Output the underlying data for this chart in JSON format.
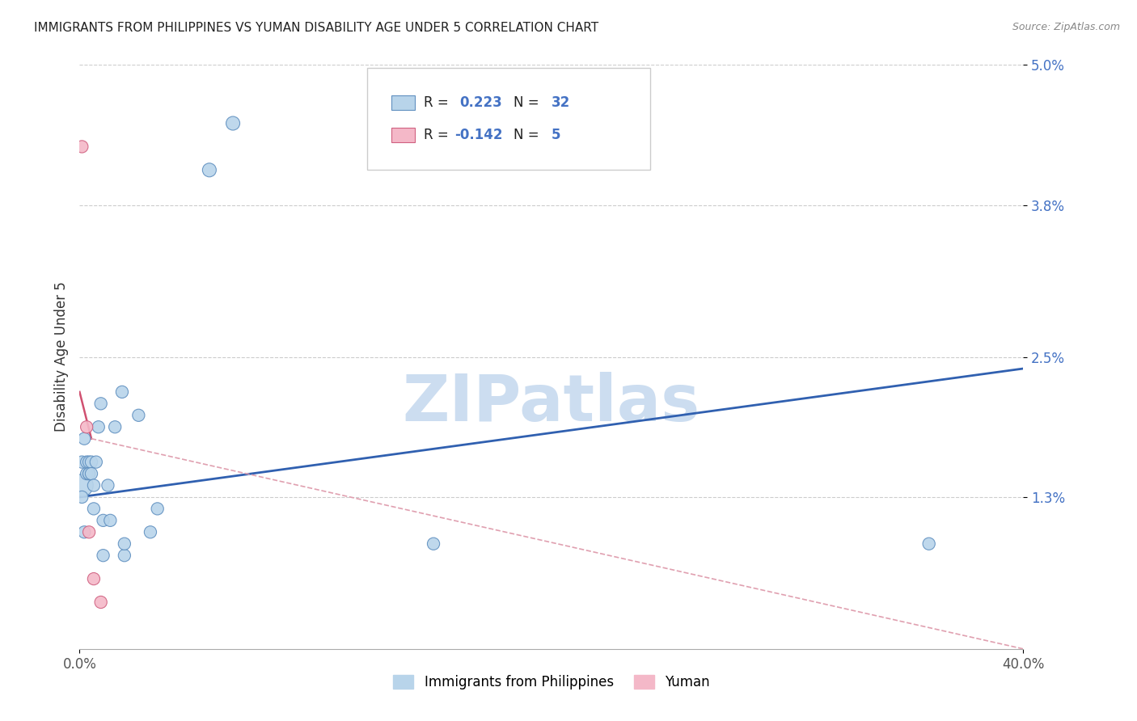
{
  "title": "IMMIGRANTS FROM PHILIPPINES VS YUMAN DISABILITY AGE UNDER 5 CORRELATION CHART",
  "source": "Source: ZipAtlas.com",
  "ylabel": "Disability Age Under 5",
  "xlim": [
    0.0,
    0.4
  ],
  "ylim": [
    0.0,
    0.05
  ],
  "yticks": [
    0.013,
    0.025,
    0.038,
    0.05
  ],
  "ytick_labels": [
    "1.3%",
    "2.5%",
    "3.8%",
    "5.0%"
  ],
  "xticks": [
    0.0,
    0.4
  ],
  "xtick_labels": [
    "0.0%",
    "40.0%"
  ],
  "legend_entries": [
    {
      "label": "Immigrants from Philippines",
      "R": "0.223",
      "N": "32",
      "color": "#b8d4ea"
    },
    {
      "label": "Yuman",
      "R": "-0.142",
      "N": "5",
      "color": "#f4b8c8"
    }
  ],
  "blue_points": [
    [
      0.001,
      0.014
    ],
    [
      0.001,
      0.013
    ],
    [
      0.001,
      0.016
    ],
    [
      0.002,
      0.018
    ],
    [
      0.002,
      0.01
    ],
    [
      0.003,
      0.015
    ],
    [
      0.003,
      0.016
    ],
    [
      0.004,
      0.015
    ],
    [
      0.004,
      0.016
    ],
    [
      0.004,
      0.015
    ],
    [
      0.005,
      0.016
    ],
    [
      0.005,
      0.015
    ],
    [
      0.006,
      0.014
    ],
    [
      0.006,
      0.012
    ],
    [
      0.007,
      0.016
    ],
    [
      0.008,
      0.019
    ],
    [
      0.009,
      0.021
    ],
    [
      0.01,
      0.011
    ],
    [
      0.01,
      0.008
    ],
    [
      0.012,
      0.014
    ],
    [
      0.013,
      0.011
    ],
    [
      0.015,
      0.019
    ],
    [
      0.018,
      0.022
    ],
    [
      0.019,
      0.008
    ],
    [
      0.019,
      0.009
    ],
    [
      0.025,
      0.02
    ],
    [
      0.03,
      0.01
    ],
    [
      0.033,
      0.012
    ],
    [
      0.055,
      0.041
    ],
    [
      0.065,
      0.045
    ],
    [
      0.15,
      0.009
    ],
    [
      0.36,
      0.009
    ]
  ],
  "blue_sizes": [
    400,
    120,
    120,
    120,
    120,
    120,
    120,
    120,
    120,
    120,
    120,
    120,
    120,
    120,
    120,
    120,
    120,
    120,
    120,
    120,
    120,
    120,
    120,
    120,
    120,
    120,
    120,
    120,
    150,
    150,
    120,
    120
  ],
  "pink_points": [
    [
      0.001,
      0.043
    ],
    [
      0.003,
      0.019
    ],
    [
      0.004,
      0.01
    ],
    [
      0.006,
      0.006
    ],
    [
      0.009,
      0.004
    ]
  ],
  "pink_sizes": [
    120,
    120,
    120,
    120,
    120
  ],
  "blue_fill_color": "#b8d4ea",
  "blue_edge_color": "#6090c0",
  "pink_fill_color": "#f4b8c8",
  "pink_edge_color": "#d06080",
  "blue_line_color": "#3060b0",
  "pink_line_color": "#d05070",
  "pink_line_dashed_color": "#e0a0b0",
  "watermark_text": "ZIPatlas",
  "watermark_color": "#ccddf0",
  "background_color": "#ffffff",
  "grid_color": "#cccccc",
  "blue_trend": [
    0.0,
    0.4,
    0.013,
    0.024
  ],
  "pink_trend_solid": [
    0.0,
    0.005,
    0.022,
    0.018
  ],
  "pink_trend_dashed": [
    0.005,
    0.4,
    0.018,
    -0.015
  ]
}
